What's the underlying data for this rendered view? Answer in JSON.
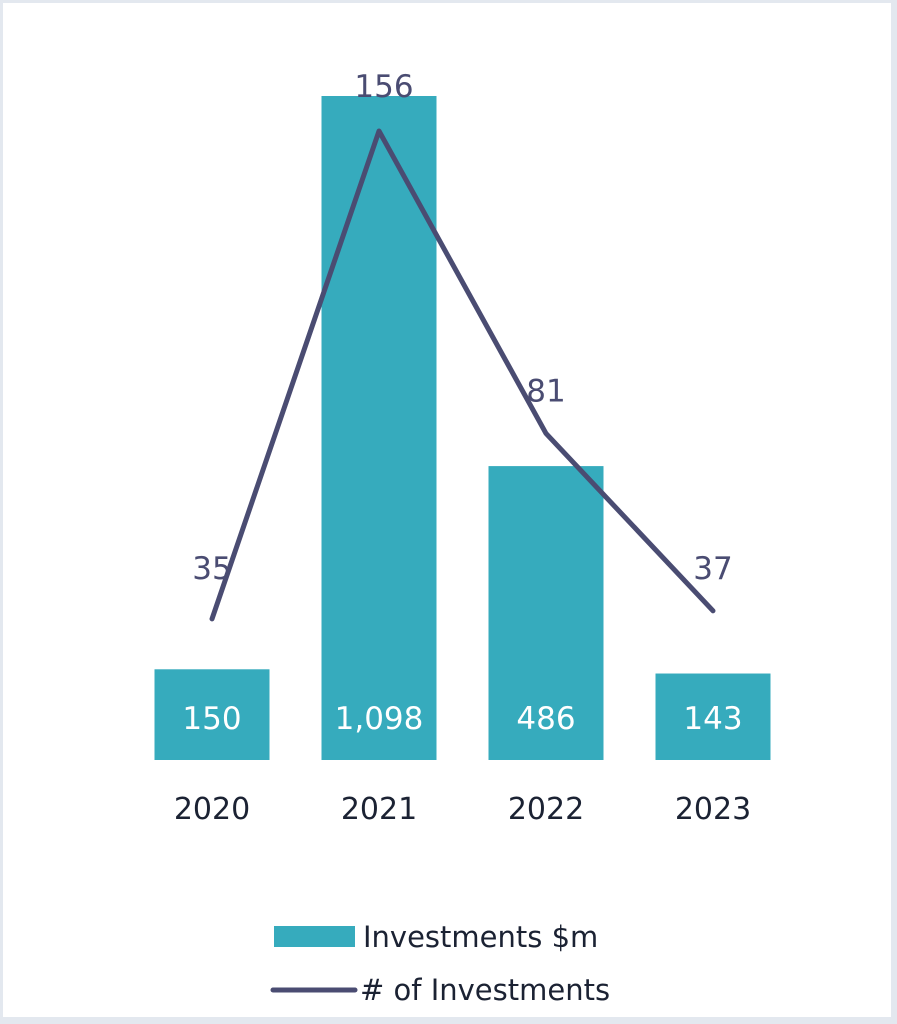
{
  "chart_data": {
    "type": "bar",
    "title": "",
    "xlabel": "",
    "ylabel": "",
    "categories": [
      "2020",
      "2021",
      "2022",
      "2023"
    ],
    "series": [
      {
        "name": "Investments $m",
        "type": "bar",
        "values": [
          150,
          1098,
          486,
          143
        ],
        "labels": [
          "150",
          "1,098",
          "486",
          "143"
        ],
        "color": "#36abbd"
      },
      {
        "name": "# of Investments",
        "type": "line",
        "values": [
          35,
          156,
          81,
          37
        ],
        "labels": [
          "35",
          "156",
          "81",
          "37"
        ],
        "color": "#4a4c72"
      }
    ],
    "grid": false,
    "axes_visible": false,
    "legend": "bottom-center",
    "text_colors": {
      "category": "#1b2233",
      "bar_label": "#ffffff",
      "line_label": "#4a4c72",
      "legend": "#1b2233"
    }
  }
}
